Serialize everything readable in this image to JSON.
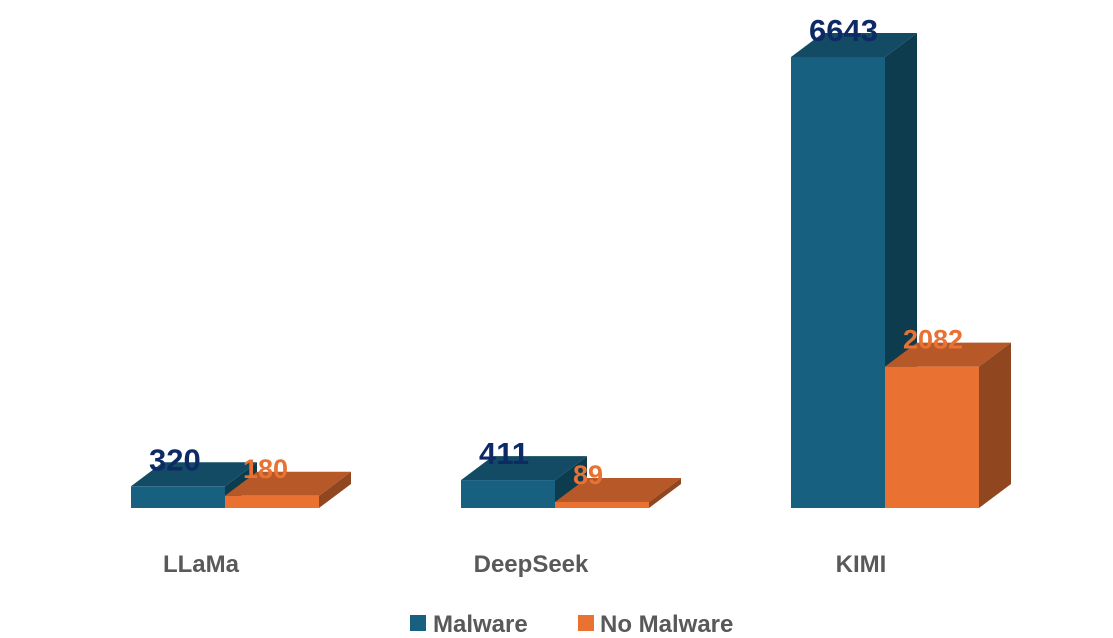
{
  "chart_data": {
    "type": "bar",
    "categories": [
      "LLaMa",
      "DeepSeek",
      "KIMI"
    ],
    "series": [
      {
        "name": "Malware",
        "values": [
          320,
          411,
          6643
        ],
        "color": "#17607f",
        "label_color": "#0d2a66"
      },
      {
        "name": "No Malware",
        "values": [
          180,
          89,
          2082
        ],
        "color": "#e97132",
        "label_color": "#e97132"
      }
    ],
    "ylim": [
      0,
      6643
    ],
    "grid": false,
    "legend_position": "bottom"
  }
}
